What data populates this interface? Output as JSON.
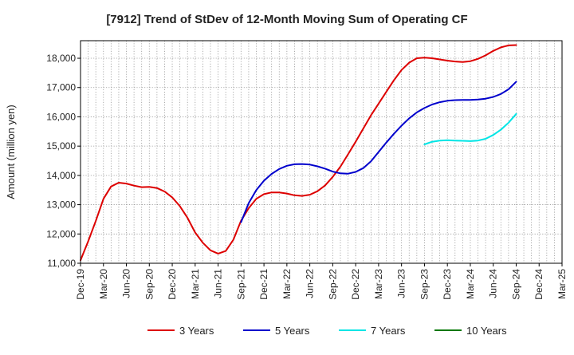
{
  "chart_data": {
    "type": "line",
    "title": "[7912]  Trend of StDev of 12-Month Moving Sum of Operating CF",
    "xlabel": "",
    "ylabel": "Amount (million yen)",
    "ylim": [
      11000,
      18600
    ],
    "yticks": [
      11000,
      12000,
      13000,
      14000,
      15000,
      16000,
      17000,
      18000
    ],
    "ytick_labels": [
      "11,000",
      "12,000",
      "13,000",
      "14,000",
      "15,000",
      "16,000",
      "17,000",
      "18,000"
    ],
    "xlim": [
      "2019-12",
      "2025-03"
    ],
    "xtick_labels": [
      "Dec-19",
      "Mar-20",
      "Jun-20",
      "Sep-20",
      "Dec-20",
      "Mar-21",
      "Jun-21",
      "Sep-21",
      "Dec-21",
      "Mar-22",
      "Jun-22",
      "Sep-22",
      "Dec-22",
      "Mar-23",
      "Jun-23",
      "Sep-23",
      "Dec-23",
      "Mar-24",
      "Jun-24",
      "Sep-24",
      "Dec-24",
      "Mar-25"
    ],
    "grid": true,
    "legend": "bottom",
    "series": [
      {
        "name": "3 Years",
        "color": "#dd0000",
        "x": [
          "2019-12",
          "2020-01",
          "2020-02",
          "2020-03",
          "2020-04",
          "2020-05",
          "2020-06",
          "2020-07",
          "2020-08",
          "2020-09",
          "2020-10",
          "2020-11",
          "2020-12",
          "2021-01",
          "2021-02",
          "2021-03",
          "2021-04",
          "2021-05",
          "2021-06",
          "2021-07",
          "2021-08",
          "2021-09",
          "2021-10",
          "2021-11",
          "2021-12",
          "2022-01",
          "2022-02",
          "2022-03",
          "2022-04",
          "2022-05",
          "2022-06",
          "2022-07",
          "2022-08",
          "2022-09",
          "2022-10",
          "2022-11",
          "2022-12",
          "2023-01",
          "2023-02",
          "2023-03",
          "2023-04",
          "2023-05",
          "2023-06",
          "2023-07",
          "2023-08",
          "2023-09",
          "2023-10",
          "2023-11",
          "2023-12",
          "2024-01",
          "2024-02",
          "2024-03",
          "2024-04",
          "2024-05",
          "2024-06",
          "2024-07",
          "2024-08",
          "2024-09"
        ],
        "values": [
          11100,
          11750,
          12450,
          13200,
          13620,
          13750,
          13720,
          13650,
          13600,
          13610,
          13570,
          13450,
          13250,
          12950,
          12550,
          12050,
          11700,
          11440,
          11330,
          11420,
          11800,
          12450,
          12880,
          13200,
          13360,
          13420,
          13420,
          13380,
          13320,
          13300,
          13340,
          13460,
          13660,
          13950,
          14300,
          14720,
          15150,
          15600,
          16050,
          16450,
          16850,
          17250,
          17600,
          17850,
          18000,
          18020,
          18000,
          17960,
          17920,
          17890,
          17870,
          17900,
          17980,
          18100,
          18250,
          18370,
          18440,
          18450
        ]
      },
      {
        "name": "5 Years",
        "color": "#0000cc",
        "x": [
          "2021-09",
          "2021-10",
          "2021-11",
          "2021-12",
          "2022-01",
          "2022-02",
          "2022-03",
          "2022-04",
          "2022-05",
          "2022-06",
          "2022-07",
          "2022-08",
          "2022-09",
          "2022-10",
          "2022-11",
          "2022-12",
          "2023-01",
          "2023-02",
          "2023-03",
          "2023-04",
          "2023-05",
          "2023-06",
          "2023-07",
          "2023-08",
          "2023-09",
          "2023-10",
          "2023-11",
          "2023-12",
          "2024-01",
          "2024-02",
          "2024-03",
          "2024-04",
          "2024-05",
          "2024-06",
          "2024-07",
          "2024-08",
          "2024-09"
        ],
        "values": [
          12400,
          13050,
          13500,
          13820,
          14050,
          14220,
          14330,
          14380,
          14390,
          14370,
          14310,
          14230,
          14130,
          14070,
          14060,
          14120,
          14250,
          14480,
          14800,
          15120,
          15420,
          15700,
          15950,
          16150,
          16300,
          16420,
          16500,
          16550,
          16570,
          16580,
          16580,
          16590,
          16620,
          16680,
          16780,
          16940,
          17200
        ]
      },
      {
        "name": "7 Years",
        "color": "#00e5e5",
        "x": [
          "2023-09",
          "2023-10",
          "2023-11",
          "2023-12",
          "2024-01",
          "2024-02",
          "2024-03",
          "2024-04",
          "2024-05",
          "2024-06",
          "2024-07",
          "2024-08",
          "2024-09"
        ],
        "values": [
          15060,
          15150,
          15190,
          15200,
          15190,
          15180,
          15170,
          15190,
          15250,
          15380,
          15560,
          15800,
          16100
        ]
      },
      {
        "name": "10 Years",
        "color": "#007700",
        "x": [],
        "values": []
      }
    ]
  }
}
